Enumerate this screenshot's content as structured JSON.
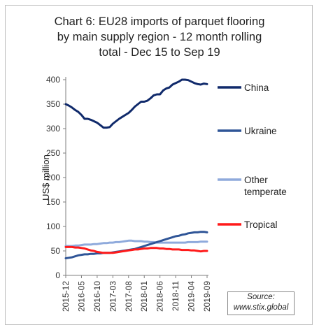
{
  "chart_data": {
    "type": "line",
    "title_lines": [
      "Chart 6: EU28 imports of parquet flooring",
      "by main supply region - 12 month rolling",
      "total - Dec 15 to Sep 19"
    ],
    "ylabel": "US$ million",
    "xlabel": "",
    "ylim": [
      0,
      400
    ],
    "yticks": [
      0,
      50,
      100,
      150,
      200,
      250,
      300,
      350,
      400
    ],
    "grid": false,
    "legend": "right",
    "x_tick_labels": [
      "2015-12",
      "2016-05",
      "2016-10",
      "2017-03",
      "2017-08",
      "2018-01",
      "2018-06",
      "2018-11",
      "2019-04",
      "2019-09"
    ],
    "x_start": "2015-12",
    "x_end": "2019-09",
    "series": [
      {
        "name": "China",
        "color": "#102a6b",
        "values": [
          350,
          347,
          343,
          338,
          334,
          328,
          320,
          320,
          318,
          315,
          312,
          307,
          302,
          302,
          303,
          310,
          315,
          320,
          324,
          328,
          332,
          338,
          345,
          350,
          355,
          355,
          357,
          362,
          368,
          370,
          370,
          378,
          382,
          384,
          390,
          393,
          396,
          400,
          400,
          399,
          396,
          393,
          391,
          390,
          392,
          391
        ]
      },
      {
        "name": "Ukraine",
        "color": "#2f5597",
        "values": [
          35,
          36,
          37,
          39,
          41,
          42,
          43,
          43,
          44,
          44,
          45,
          45,
          46,
          46,
          46,
          47,
          48,
          49,
          50,
          51,
          52,
          53,
          54,
          56,
          58,
          60,
          62,
          64,
          66,
          68,
          70,
          72,
          74,
          76,
          78,
          80,
          81,
          83,
          84,
          86,
          87,
          88,
          88,
          89,
          89,
          88
        ]
      },
      {
        "name": "Other temperate",
        "color": "#8faadc",
        "values": [
          60,
          60,
          60,
          61,
          61,
          62,
          63,
          63,
          63,
          64,
          64,
          65,
          66,
          66,
          67,
          67,
          68,
          68,
          69,
          70,
          71,
          71,
          70,
          70,
          70,
          69,
          69,
          68,
          68,
          67,
          67,
          67,
          67,
          67,
          67,
          67,
          67,
          67,
          67,
          68,
          68,
          68,
          68,
          69,
          69,
          69
        ]
      },
      {
        "name": "Tropical",
        "color": "#ff1a1a",
        "values": [
          58,
          58,
          58,
          57,
          57,
          56,
          55,
          53,
          51,
          50,
          48,
          47,
          46,
          46,
          46,
          46,
          47,
          48,
          49,
          50,
          51,
          52,
          53,
          53,
          54,
          55,
          55,
          56,
          56,
          56,
          55,
          55,
          54,
          54,
          53,
          53,
          53,
          52,
          52,
          52,
          51,
          51,
          50,
          49,
          50,
          50
        ]
      }
    ],
    "legend_entries": [
      {
        "name": "China",
        "label_lines": [
          "China"
        ]
      },
      {
        "name": "Ukraine",
        "label_lines": [
          "Ukraine"
        ]
      },
      {
        "name": "Other temperate",
        "label_lines": [
          "Other",
          "temperate"
        ]
      },
      {
        "name": "Tropical",
        "label_lines": [
          "Tropical"
        ]
      }
    ],
    "source_lines": [
      "Source:",
      "www.stix.global"
    ]
  }
}
